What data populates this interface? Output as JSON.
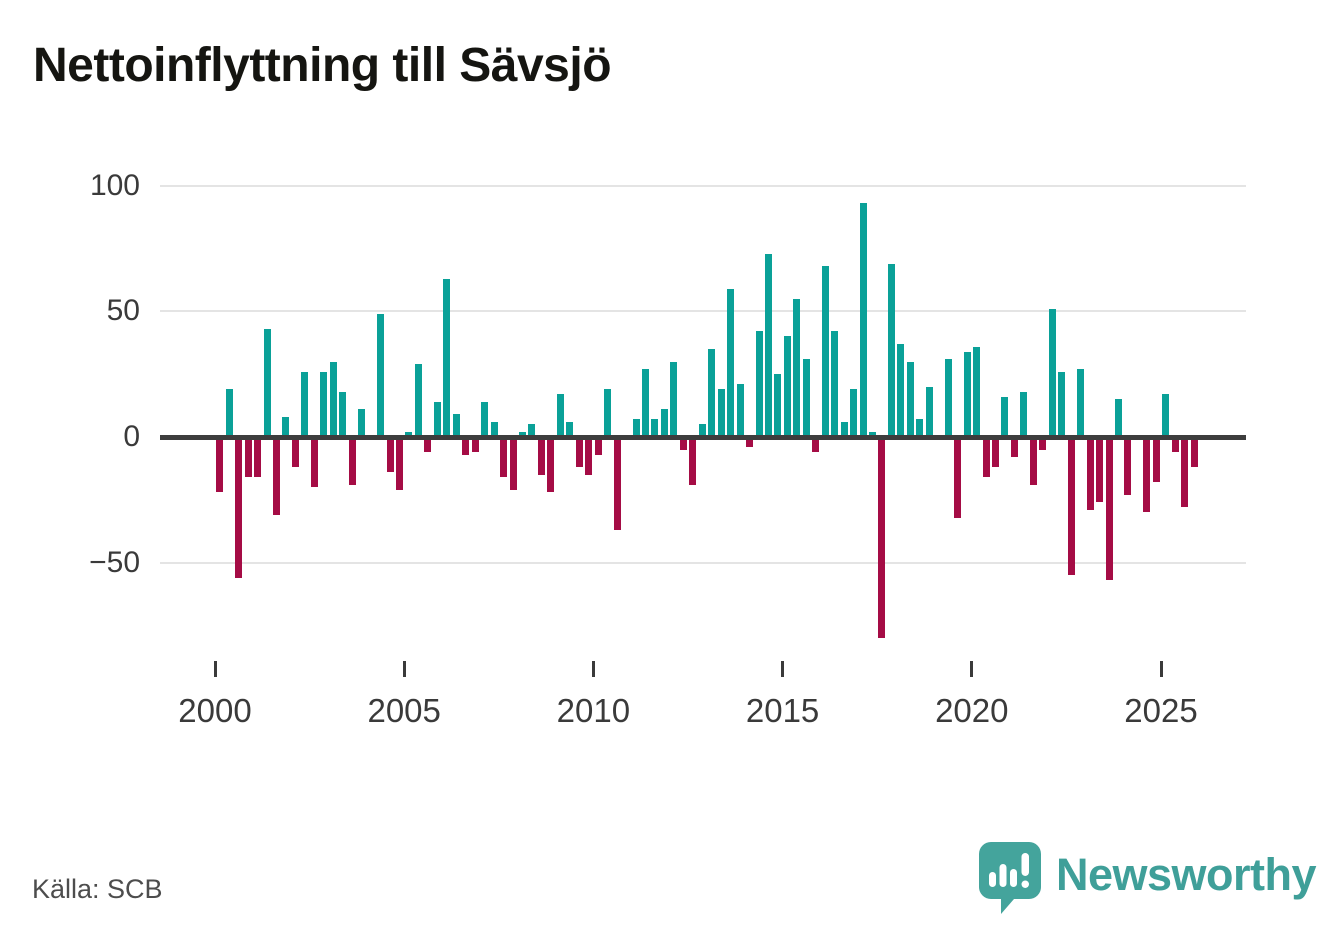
{
  "title": "Nettoinflyttning till Sävsjö",
  "source": "Källa: SCB",
  "logo": {
    "brand": "Newsworthy"
  },
  "colors": {
    "positive": "#0aa198",
    "negative": "#a50c45",
    "axis": "#3d3d3d",
    "grid": "#e4e4e4",
    "logo_teal": "#44a49c"
  },
  "chart_data": {
    "type": "bar",
    "title": "Nettoinflyttning till Sävsjö",
    "frequency": "quarterly",
    "x_start": "2000 Q1",
    "x_end": "2025 Q4",
    "x_tick_labels": [
      "2000",
      "2005",
      "2010",
      "2015",
      "2020",
      "2025"
    ],
    "y_tick_labels": [
      "100",
      "50",
      "0",
      "−50"
    ],
    "y_ticks": [
      100,
      50,
      0,
      -50
    ],
    "ylim": [
      -80,
      100
    ],
    "grid": "horizontal",
    "legend": "none",
    "values": [
      -22,
      19,
      -56,
      -16,
      -16,
      43,
      -31,
      8,
      -12,
      26,
      -20,
      26,
      30,
      18,
      -19,
      11,
      1,
      49,
      -14,
      -21,
      2,
      29,
      -6,
      14,
      63,
      9,
      -7,
      -6,
      14,
      6,
      -16,
      -21,
      2,
      5,
      -15,
      -22,
      17,
      6,
      -12,
      -15,
      -7,
      19,
      -37,
      0,
      7,
      27,
      7,
      11,
      30,
      -5,
      -19,
      5,
      35,
      19,
      59,
      21,
      -4,
      42,
      73,
      25,
      40,
      55,
      31,
      -6,
      68,
      42,
      6,
      19,
      93,
      2,
      -80,
      69,
      37,
      30,
      7,
      20,
      0,
      31,
      -32,
      34,
      36,
      -16,
      -12,
      16,
      -8,
      18,
      -19,
      -5,
      51,
      26,
      -55,
      27,
      -29,
      -26,
      -57,
      15,
      -23,
      1,
      -30,
      -18,
      17,
      -6,
      -28,
      -12
    ]
  }
}
